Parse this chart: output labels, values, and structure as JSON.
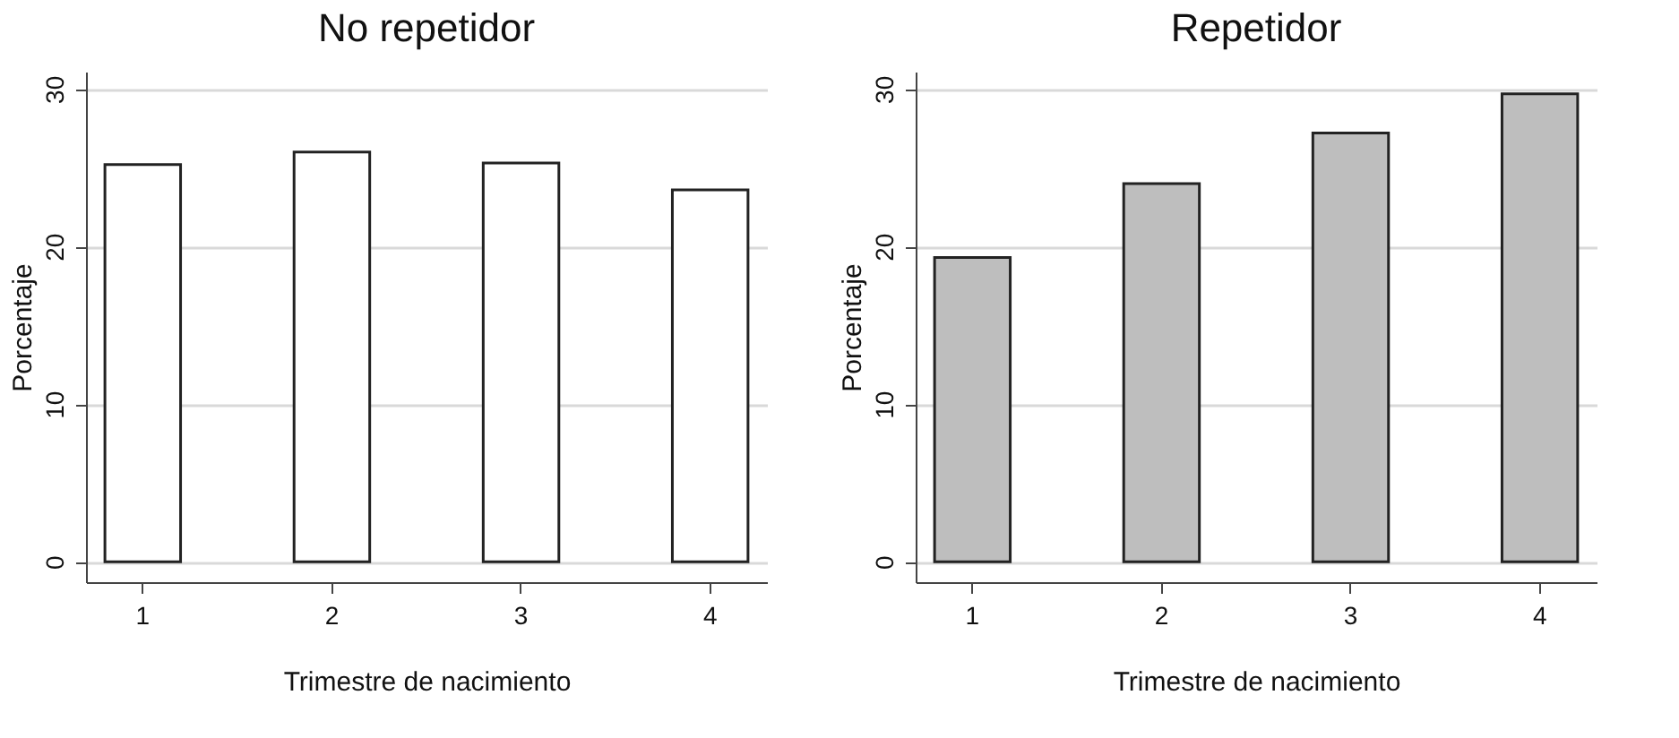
{
  "chart_data": [
    {
      "type": "bar",
      "title": "No repetidor",
      "xlabel": "Trimestre de nacimiento",
      "ylabel": "Porcentaje",
      "categories": [
        "1",
        "2",
        "3",
        "4"
      ],
      "values": [
        25.2,
        26.0,
        25.3,
        23.6
      ],
      "color": "#ffffff",
      "ylim": [
        -1.3,
        31.1
      ],
      "yticks": [
        0,
        10,
        20,
        30
      ],
      "grid": "y"
    },
    {
      "type": "bar",
      "title": "Repetidor",
      "xlabel": "Trimestre de nacimiento",
      "ylabel": "Porcentaje",
      "categories": [
        "1",
        "2",
        "3",
        "4"
      ],
      "values": [
        19.3,
        24.0,
        27.2,
        29.7
      ],
      "color": "#bebebe",
      "ylim": [
        -1.3,
        31.1
      ],
      "yticks": [
        0,
        10,
        20,
        30
      ],
      "grid": "y"
    }
  ]
}
